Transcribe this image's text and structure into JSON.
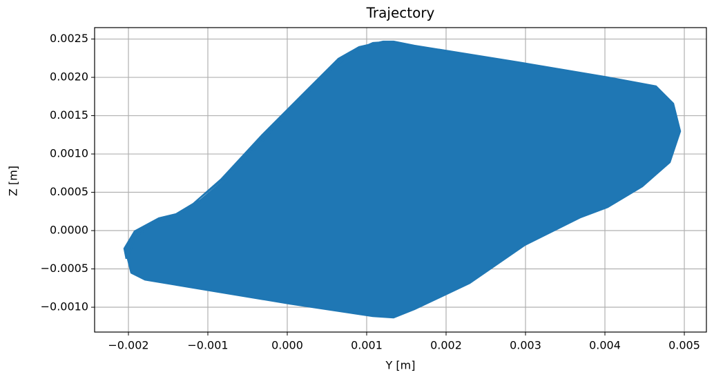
{
  "chart_data": {
    "type": "line",
    "title": "Trajectory",
    "x_label": "Y [m]",
    "y_label": "Z [m]",
    "x": [
      -0.002026,
      -0.002052,
      -0.001922,
      -0.001617,
      -0.0014,
      -0.001183,
      -0.000835,
      -0.000313,
      0.000209,
      0.000643,
      0.000904,
      0.001209,
      0.001339,
      0.0016,
      0.002904,
      0.004035,
      0.004643,
      0.004861,
      0.004948,
      0.004817,
      0.00447,
      0.004035,
      0.003687,
      0.002991,
      0.002296,
      0.0016,
      0.001339,
      0.001078,
      3.5e-05,
      -0.001009,
      -0.001791,
      -0.001965,
      -0.002009,
      -0.001922,
      -0.001704,
      -0.001357,
      -0.001096,
      -0.000835,
      -0.0004,
      3.5e-05,
      0.00047,
      0.000817,
      0.001078,
      0.001339
    ],
    "series": [
      {
        "color": "#1f77b4",
        "values": [
          -0.000369,
          -0.000234,
          -9e-06,
          0.000162,
          0.000216,
          0.000351,
          0.000667,
          0.001252,
          0.001793,
          0.002243,
          0.002396,
          0.002468,
          0.002468,
          0.002414,
          0.002198,
          0.002,
          0.001883,
          0.001658,
          0.001297,
          0.000892,
          0.000577,
          0.000306,
          0.000171,
          -0.000189,
          -0.000685,
          -0.001027,
          -0.001135,
          -0.001117,
          -0.000955,
          -0.000775,
          -0.00064,
          -0.00055,
          -0.000369,
          -9.9e-05,
          8.1e-05,
          0.000216,
          0.000396,
          0.000622,
          0.001072,
          0.001568,
          0.002018,
          0.002333,
          0.00245,
          0.002468
        ]
      }
    ],
    "xlim": [
      -0.002426,
      0.005278
    ],
    "xticks": [
      {
        "value": -0.002,
        "label": "−0.002"
      },
      {
        "value": -0.001,
        "label": "−0.001"
      },
      {
        "value": 0,
        "label": "0.000"
      },
      0.001,
      0.002,
      0.003,
      0.004,
      0.005
    ],
    "ylim": [
      -0.001324,
      0.002649
    ],
    "yticks": [
      {
        "value": -0.001,
        "label": "−0.0010"
      },
      {
        "value": -0.0005,
        "label": "−0.0005"
      },
      {
        "value": 0,
        "label": "0.0000"
      },
      0.0005,
      {
        "value": 0.001,
        "label": "0.0010"
      },
      0.0015,
      {
        "value": 0.002,
        "label": "0.0020"
      },
      0.0025
    ],
    "grid": true
  }
}
